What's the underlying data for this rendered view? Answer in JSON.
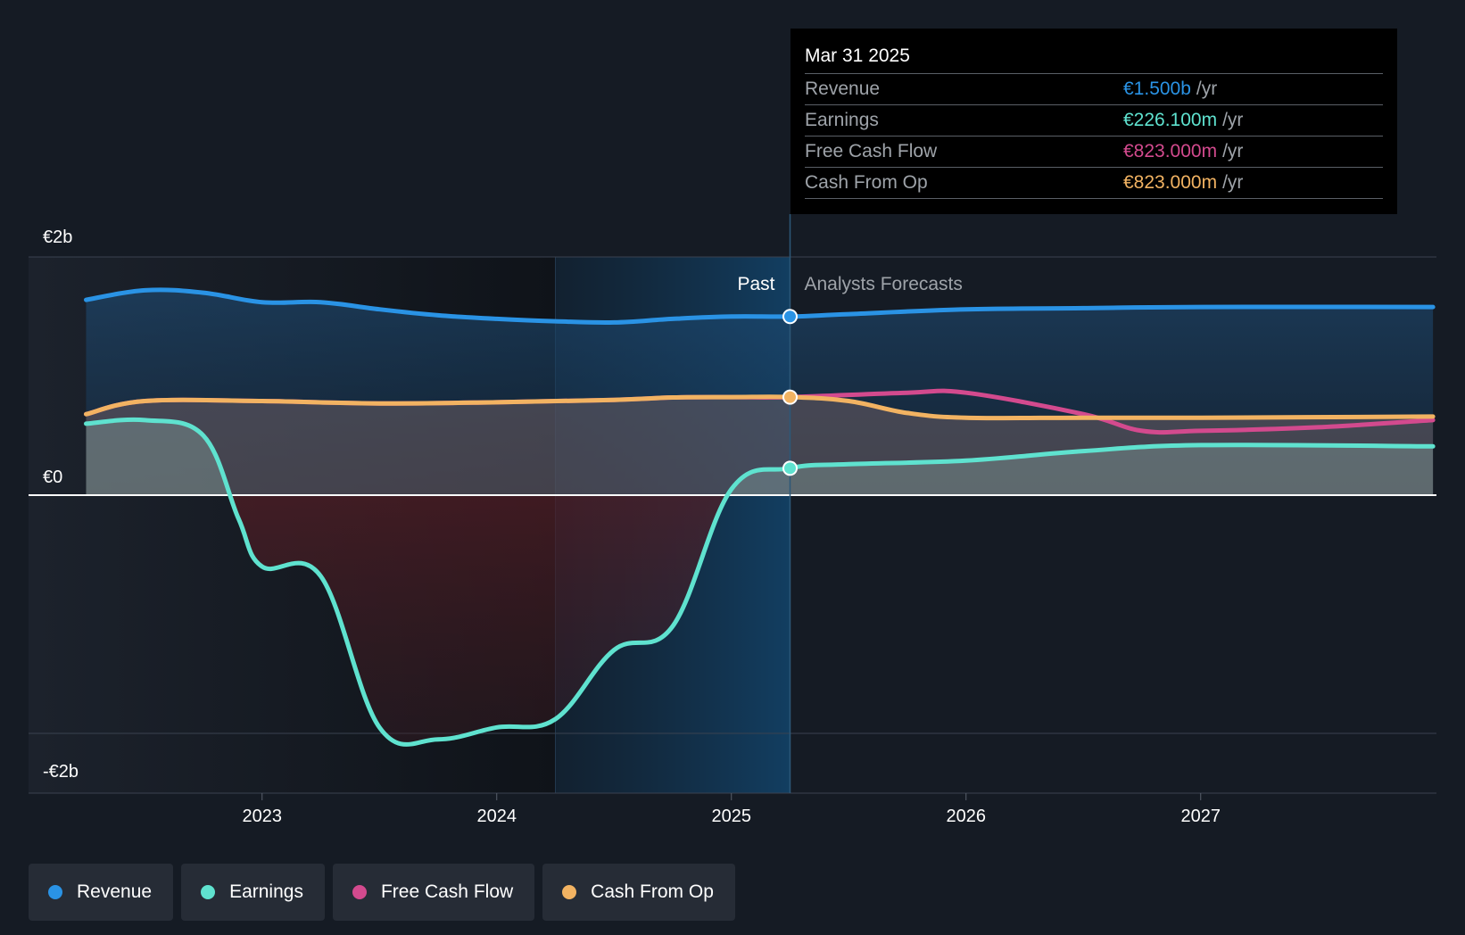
{
  "chart_data": {
    "type": "area",
    "y_tick_labels": [
      "€2b",
      "€0",
      "-€2b"
    ],
    "ylim": [
      -2.5,
      2.0
    ],
    "x_ticks": [
      "2023",
      "2024",
      "2025",
      "2026",
      "2027"
    ],
    "xlim": [
      2022.24,
      2027.99
    ],
    "past_label": "Past",
    "forecast_label": "Analysts Forecasts",
    "divider_x": 2025.25,
    "highlight_start_x": 2024.25,
    "series": [
      {
        "name": "Revenue",
        "color": "#2a93e5",
        "points": [
          [
            2022.25,
            1.64
          ],
          [
            2022.5,
            1.72
          ],
          [
            2022.75,
            1.7
          ],
          [
            2023.0,
            1.62
          ],
          [
            2023.25,
            1.62
          ],
          [
            2023.5,
            1.56
          ],
          [
            2023.75,
            1.51
          ],
          [
            2024.0,
            1.48
          ],
          [
            2024.25,
            1.46
          ],
          [
            2024.5,
            1.45
          ],
          [
            2024.75,
            1.48
          ],
          [
            2025.0,
            1.5
          ],
          [
            2025.25,
            1.5
          ],
          [
            2025.5,
            1.52
          ],
          [
            2026.0,
            1.56
          ],
          [
            2026.5,
            1.57
          ],
          [
            2027.0,
            1.58
          ],
          [
            2027.99,
            1.58
          ]
        ]
      },
      {
        "name": "Earnings",
        "color": "#5fe2cf",
        "points": [
          [
            2022.25,
            0.6
          ],
          [
            2022.5,
            0.63
          ],
          [
            2022.75,
            0.5
          ],
          [
            2022.9,
            -0.2
          ],
          [
            2023.0,
            -0.6
          ],
          [
            2023.25,
            -0.68
          ],
          [
            2023.5,
            -1.95
          ],
          [
            2023.75,
            -2.05
          ],
          [
            2024.0,
            -1.95
          ],
          [
            2024.25,
            -1.88
          ],
          [
            2024.5,
            -1.3
          ],
          [
            2024.75,
            -1.1
          ],
          [
            2025.0,
            0.05
          ],
          [
            2025.25,
            0.226
          ],
          [
            2025.5,
            0.26
          ],
          [
            2026.0,
            0.29
          ],
          [
            2026.5,
            0.37
          ],
          [
            2027.0,
            0.42
          ],
          [
            2027.99,
            0.41
          ]
        ]
      },
      {
        "name": "Free Cash Flow",
        "color": "#d34a8e",
        "points": [
          [
            2022.25,
            0.68
          ],
          [
            2022.5,
            0.79
          ],
          [
            2023.0,
            0.79
          ],
          [
            2023.5,
            0.77
          ],
          [
            2024.0,
            0.78
          ],
          [
            2024.5,
            0.8
          ],
          [
            2024.75,
            0.82
          ],
          [
            2025.0,
            0.823
          ],
          [
            2025.25,
            0.823
          ],
          [
            2025.75,
            0.86
          ],
          [
            2026.0,
            0.86
          ],
          [
            2026.5,
            0.68
          ],
          [
            2026.75,
            0.54
          ],
          [
            2027.0,
            0.54
          ],
          [
            2027.5,
            0.57
          ],
          [
            2027.99,
            0.63
          ]
        ]
      },
      {
        "name": "Cash From Op",
        "color": "#f2b362",
        "points": [
          [
            2022.25,
            0.68
          ],
          [
            2022.5,
            0.79
          ],
          [
            2023.0,
            0.79
          ],
          [
            2023.5,
            0.77
          ],
          [
            2024.0,
            0.78
          ],
          [
            2024.5,
            0.8
          ],
          [
            2024.75,
            0.82
          ],
          [
            2025.0,
            0.823
          ],
          [
            2025.25,
            0.823
          ],
          [
            2025.5,
            0.79
          ],
          [
            2025.75,
            0.69
          ],
          [
            2026.0,
            0.65
          ],
          [
            2026.5,
            0.65
          ],
          [
            2027.0,
            0.65
          ],
          [
            2027.99,
            0.66
          ]
        ]
      }
    ]
  },
  "tooltip": {
    "date": "Mar 31 2025",
    "rows": [
      {
        "label": "Revenue",
        "value": "€1.500b",
        "unit": "/yr",
        "color": "#2a93e5"
      },
      {
        "label": "Earnings",
        "value": "€226.100m",
        "unit": "/yr",
        "color": "#5fe2cf"
      },
      {
        "label": "Free Cash Flow",
        "value": "€823.000m",
        "unit": "/yr",
        "color": "#d34a8e"
      },
      {
        "label": "Cash From Op",
        "value": "€823.000m",
        "unit": "/yr",
        "color": "#f2b362"
      }
    ]
  },
  "legend": [
    {
      "label": "Revenue",
      "color": "#2a93e5"
    },
    {
      "label": "Earnings",
      "color": "#5fe2cf"
    },
    {
      "label": "Free Cash Flow",
      "color": "#d34a8e"
    },
    {
      "label": "Cash From Op",
      "color": "#f2b362"
    }
  ]
}
